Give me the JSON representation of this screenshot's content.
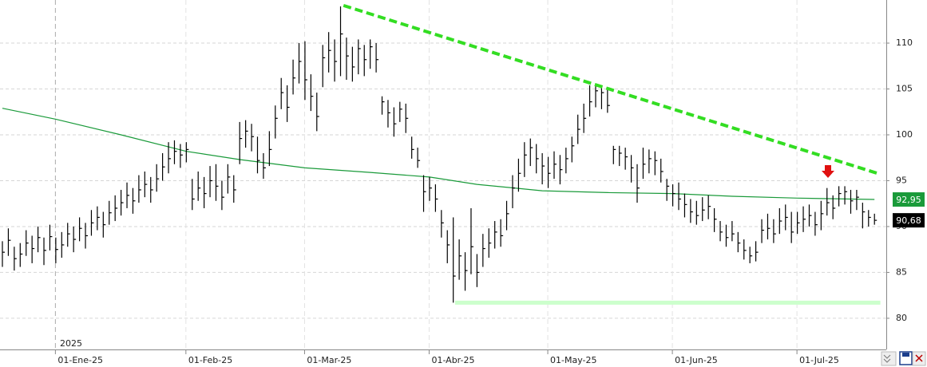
{
  "chart_data": {
    "type": "ohlc",
    "year_label": "2025",
    "color": "#000000",
    "grid": true,
    "ylim": [
      76.6,
      114.7
    ],
    "yticks": [
      80,
      85,
      90,
      95,
      100,
      105,
      110
    ],
    "categories": [
      null,
      null,
      null,
      null,
      null,
      null,
      null,
      null,
      null,
      "01-Ene-25",
      null,
      null,
      null,
      null,
      null,
      null,
      null,
      null,
      null,
      null,
      null,
      null,
      null,
      null,
      null,
      null,
      null,
      null,
      null,
      null,
      null,
      "01-Feb-25",
      null,
      null,
      null,
      null,
      null,
      null,
      null,
      null,
      null,
      null,
      null,
      null,
      null,
      null,
      null,
      null,
      null,
      null,
      null,
      "01-Mar-25",
      null,
      null,
      null,
      null,
      null,
      null,
      null,
      null,
      null,
      null,
      null,
      null,
      null,
      null,
      null,
      null,
      null,
      null,
      null,
      null,
      "01-Abr-25",
      null,
      null,
      null,
      null,
      null,
      null,
      null,
      null,
      null,
      null,
      null,
      null,
      null,
      null,
      null,
      null,
      null,
      null,
      null,
      "01-May-25",
      null,
      null,
      null,
      null,
      null,
      null,
      null,
      null,
      null,
      null,
      null,
      null,
      null,
      null,
      null,
      null,
      null,
      null,
      null,
      null,
      "01-Jun-25",
      null,
      null,
      null,
      null,
      null,
      null,
      null,
      null,
      null,
      null,
      null,
      null,
      null,
      null,
      null,
      null,
      null,
      null,
      null,
      null,
      "01-Jul-25",
      null,
      null,
      null,
      null,
      null,
      null,
      null,
      null,
      null,
      null,
      null,
      null,
      null
    ],
    "high": [
      88.4,
      89.8,
      87.8,
      88.2,
      89.6,
      89.0,
      90.0,
      88.8,
      90.2,
      88.8,
      89.4,
      90.4,
      90.0,
      91.0,
      90.4,
      91.8,
      92.2,
      91.6,
      92.8,
      93.4,
      94.0,
      94.8,
      94.2,
      95.6,
      96.0,
      95.4,
      96.8,
      98.0,
      99.2,
      99.4,
      99.0,
      99.2,
      95.2,
      96.0,
      95.4,
      96.6,
      96.8,
      95.0,
      96.8,
      95.6,
      101.4,
      101.6,
      101.2,
      99.8,
      98.0,
      100.4,
      103.2,
      106.2,
      105.4,
      108.2,
      110.0,
      110.2,
      106.6,
      104.6,
      109.8,
      111.2,
      110.4,
      114.0,
      110.6,
      109.6,
      110.4,
      109.8,
      110.4,
      110.0,
      104.2,
      103.8,
      103.0,
      103.6,
      103.4,
      99.8,
      98.6,
      95.6,
      95.4,
      94.6,
      91.8,
      89.6,
      91.0,
      88.6,
      87.2,
      92.0,
      87.0,
      89.2,
      89.8,
      90.6,
      90.8,
      92.8,
      95.6,
      97.4,
      99.2,
      99.6,
      99.0,
      98.0,
      97.6,
      98.2,
      97.8,
      98.6,
      99.8,
      102.2,
      103.4,
      105.4,
      105.6,
      105.4,
      105.0,
      98.8,
      98.8,
      98.6,
      97.8,
      96.8,
      98.6,
      98.4,
      98.2,
      97.4,
      95.2,
      94.6,
      94.8,
      93.6,
      93.0,
      92.8,
      93.2,
      93.4,
      92.0,
      90.6,
      90.2,
      90.6,
      89.4,
      88.6,
      87.8,
      88.4,
      90.8,
      91.4,
      90.8,
      92.0,
      92.4,
      91.6,
      91.6,
      92.2,
      92.4,
      91.6,
      92.8,
      94.2,
      93.4,
      94.4,
      94.4,
      94.0,
      94.0,
      92.6,
      91.8,
      91.4
    ],
    "low": [
      85.6,
      86.8,
      85.2,
      85.6,
      86.8,
      86.0,
      87.2,
      85.8,
      87.4,
      86.0,
      86.6,
      87.8,
      87.2,
      88.4,
      87.6,
      89.0,
      89.6,
      88.8,
      90.2,
      90.6,
      91.2,
      92.0,
      91.4,
      92.6,
      93.2,
      92.6,
      93.8,
      95.0,
      95.8,
      96.8,
      96.4,
      97.0,
      91.8,
      92.8,
      92.0,
      93.2,
      92.8,
      91.8,
      93.6,
      92.6,
      96.8,
      98.6,
      98.2,
      95.8,
      95.2,
      96.6,
      99.6,
      102.8,
      101.4,
      104.4,
      105.6,
      103.8,
      102.6,
      100.4,
      105.2,
      106.8,
      105.8,
      106.4,
      106.0,
      105.8,
      106.6,
      106.4,
      107.2,
      106.8,
      102.2,
      100.8,
      99.8,
      101.4,
      100.2,
      97.4,
      96.4,
      91.6,
      92.8,
      91.6,
      88.8,
      86.0,
      81.7,
      84.2,
      83.0,
      84.8,
      83.4,
      85.6,
      86.6,
      87.6,
      87.8,
      89.6,
      92.0,
      93.8,
      95.4,
      96.6,
      95.8,
      94.6,
      94.2,
      95.2,
      94.6,
      95.8,
      97.0,
      99.0,
      100.2,
      102.0,
      103.0,
      102.8,
      102.4,
      96.8,
      96.6,
      96.2,
      94.8,
      92.6,
      95.2,
      95.8,
      95.6,
      94.8,
      92.8,
      92.2,
      91.8,
      91.0,
      90.4,
      90.2,
      90.6,
      90.8,
      89.4,
      88.4,
      87.8,
      88.4,
      87.2,
      86.4,
      86.0,
      86.2,
      88.2,
      88.6,
      88.2,
      89.2,
      89.6,
      88.2,
      89.2,
      89.4,
      90.0,
      89.0,
      89.6,
      91.2,
      90.8,
      92.2,
      92.4,
      91.4,
      91.8,
      89.8,
      90.0,
      90.2
    ],
    "close": [
      87.2,
      88.5,
      86.5,
      87.0,
      88.2,
      87.6,
      88.8,
      87.4,
      88.9,
      87.5,
      88.0,
      89.2,
      88.6,
      89.8,
      89.0,
      90.4,
      91.0,
      90.2,
      91.5,
      92.0,
      92.6,
      93.4,
      92.8,
      94.0,
      94.6,
      94.0,
      95.2,
      96.5,
      97.4,
      98.2,
      97.8,
      98.4,
      93.0,
      94.2,
      93.6,
      95.0,
      94.4,
      93.2,
      95.4,
      94.0,
      99.6,
      100.4,
      99.8,
      97.2,
      96.4,
      98.4,
      101.8,
      104.6,
      103.0,
      106.2,
      108.0,
      106.0,
      104.2,
      102.0,
      108.4,
      109.2,
      108.0,
      111.0,
      108.6,
      107.4,
      109.4,
      108.2,
      109.6,
      108.2,
      103.6,
      102.4,
      101.2,
      102.8,
      101.8,
      98.4,
      97.2,
      93.8,
      94.2,
      93.0,
      90.4,
      88.0,
      84.6,
      86.8,
      85.2,
      87.8,
      85.0,
      87.6,
      88.2,
      89.4,
      89.0,
      91.4,
      94.2,
      95.8,
      97.8,
      98.6,
      97.4,
      96.6,
      95.8,
      96.8,
      96.2,
      97.4,
      98.8,
      100.6,
      101.8,
      103.6,
      104.8,
      104.6,
      103.2,
      98.4,
      98.0,
      97.6,
      96.4,
      94.2,
      96.8,
      97.4,
      97.2,
      96.0,
      94.4,
      93.6,
      93.0,
      92.4,
      91.6,
      91.2,
      91.8,
      92.2,
      90.8,
      89.4,
      88.8,
      89.2,
      88.2,
      87.4,
      86.8,
      87.2,
      89.6,
      89.8,
      89.2,
      90.6,
      91.0,
      89.4,
      90.4,
      90.8,
      91.2,
      90.2,
      91.4,
      92.6,
      92.0,
      93.6,
      93.8,
      92.8,
      93.2,
      91.6,
      91.0,
      90.68
    ],
    "overlays": [
      {
        "kind": "moving_average",
        "color": "#1a9a3a",
        "dashed": false,
        "width": 1.2,
        "x": [
          0,
          9,
          20,
          31,
          40,
          51,
          62,
          72,
          80,
          91,
          102,
          113,
          123,
          134,
          147
        ],
        "values": [
          102.9,
          101.7,
          100.0,
          98.2,
          97.3,
          96.4,
          95.9,
          95.4,
          94.6,
          93.9,
          93.7,
          93.6,
          93.3,
          93.1,
          92.95
        ]
      },
      {
        "kind": "resistance",
        "color": "#33dd22",
        "dashed": true,
        "width": 4,
        "x": [
          57.5,
          148
        ],
        "values": [
          114.1,
          95.7
        ]
      },
      {
        "kind": "support",
        "color": "#ccffcc",
        "dashed": false,
        "width": 5,
        "x": [
          76.3,
          148
        ],
        "values": [
          81.7,
          81.7
        ]
      }
    ],
    "price_labels": [
      {
        "value": 92.95,
        "label": "92,95",
        "color": "#1a9a3a"
      },
      {
        "value": 90.68,
        "label": "90,68",
        "color": "#000000"
      }
    ]
  }
}
